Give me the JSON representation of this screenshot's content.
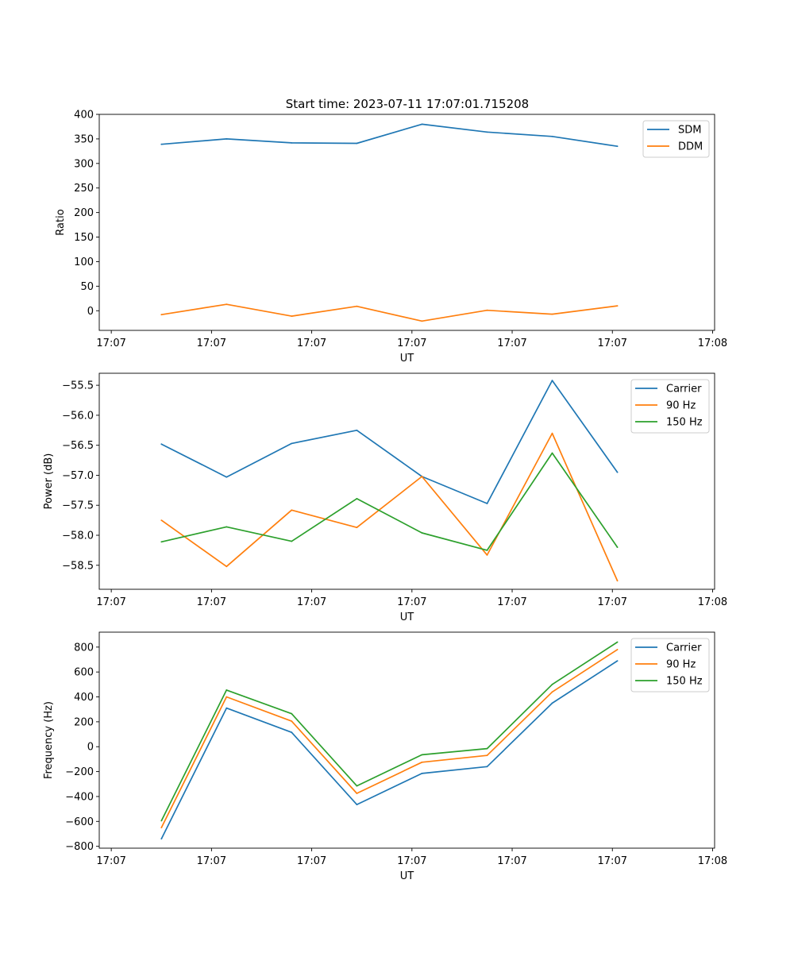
{
  "figure_title": "Start time: 2023-07-11 17:07:01.715208",
  "series_colors": {
    "blue": "#1f77b4",
    "orange": "#ff7f0e",
    "green": "#2ca02c"
  },
  "chart_data": [
    {
      "type": "line",
      "id": "ratio",
      "title": "Start time: 2023-07-11 17:07:01.715208",
      "xlabel": "UT",
      "ylabel": "Ratio",
      "x_ticks": [
        "17:07",
        "17:07",
        "17:07",
        "17:07",
        "17:07",
        "17:07",
        "17:08"
      ],
      "x_tick_positions": [
        0,
        1,
        2,
        3,
        4,
        5,
        6
      ],
      "x": [
        0.5,
        1.15,
        1.8,
        2.45,
        3.1,
        3.75,
        4.4,
        5.05
      ],
      "xlim": [
        -0.12,
        6.02
      ],
      "ylim": [
        -40,
        400
      ],
      "y_ticks": [
        0,
        50,
        100,
        150,
        200,
        250,
        300,
        350,
        400
      ],
      "legend_position": "upper-right",
      "series": [
        {
          "name": "SDM",
          "color": "#1f77b4",
          "values": [
            339,
            350,
            342,
            341,
            380,
            364,
            355,
            335
          ]
        },
        {
          "name": "DDM",
          "color": "#ff7f0e",
          "values": [
            -8,
            13,
            -11,
            9,
            -21,
            1,
            -7,
            10
          ]
        }
      ]
    },
    {
      "type": "line",
      "id": "power",
      "title": "",
      "xlabel": "UT",
      "ylabel": "Power (dB)",
      "x_ticks": [
        "17:07",
        "17:07",
        "17:07",
        "17:07",
        "17:07",
        "17:07",
        "17:08"
      ],
      "x_tick_positions": [
        0,
        1,
        2,
        3,
        4,
        5,
        6
      ],
      "x": [
        0.5,
        1.15,
        1.8,
        2.45,
        3.1,
        3.75,
        4.4,
        5.05
      ],
      "xlim": [
        -0.12,
        6.02
      ],
      "ylim": [
        -58.9,
        -55.3
      ],
      "y_ticks": [
        -58.5,
        -58.0,
        -57.5,
        -57.0,
        -56.5,
        -56.0,
        -55.5
      ],
      "y_tick_labels": [
        "−58.5",
        "−58.0",
        "−57.5",
        "−57.0",
        "−56.5",
        "−56.0",
        "−55.5"
      ],
      "legend_position": "upper-right",
      "series": [
        {
          "name": "Carrier",
          "color": "#1f77b4",
          "values": [
            -56.48,
            -57.03,
            -56.47,
            -56.25,
            -57.02,
            -57.47,
            -55.42,
            -56.95
          ]
        },
        {
          "name": "90 Hz",
          "color": "#ff7f0e",
          "values": [
            -57.75,
            -58.52,
            -57.58,
            -57.87,
            -57.02,
            -58.33,
            -56.3,
            -58.76
          ]
        },
        {
          "name": "150 Hz",
          "color": "#2ca02c",
          "values": [
            -58.11,
            -57.86,
            -58.1,
            -57.39,
            -57.96,
            -58.25,
            -56.63,
            -58.2
          ]
        }
      ]
    },
    {
      "type": "line",
      "id": "frequency",
      "title": "",
      "xlabel": "UT",
      "ylabel": "Frequency (Hz)",
      "x_ticks": [
        "17:07",
        "17:07",
        "17:07",
        "17:07",
        "17:07",
        "17:07",
        "17:08"
      ],
      "x_tick_positions": [
        0,
        1,
        2,
        3,
        4,
        5,
        6
      ],
      "x": [
        0.5,
        1.15,
        1.8,
        2.45,
        3.1,
        3.75,
        4.4,
        5.05
      ],
      "xlim": [
        -0.12,
        6.02
      ],
      "ylim": [
        -815,
        920
      ],
      "y_ticks": [
        -800,
        -600,
        -400,
        -200,
        0,
        200,
        400,
        600,
        800
      ],
      "y_tick_labels": [
        "−800",
        "−600",
        "−400",
        "−200",
        "0",
        "200",
        "400",
        "600",
        "800"
      ],
      "legend_position": "upper-right",
      "series": [
        {
          "name": "Carrier",
          "color": "#1f77b4",
          "values": [
            -740,
            310,
            115,
            -465,
            -215,
            -160,
            350,
            690
          ]
        },
        {
          "name": "90 Hz",
          "color": "#ff7f0e",
          "values": [
            -650,
            400,
            205,
            -375,
            -125,
            -70,
            440,
            780
          ]
        },
        {
          "name": "150 Hz",
          "color": "#2ca02c",
          "values": [
            -595,
            455,
            265,
            -315,
            -65,
            -15,
            500,
            840
          ]
        }
      ]
    }
  ]
}
